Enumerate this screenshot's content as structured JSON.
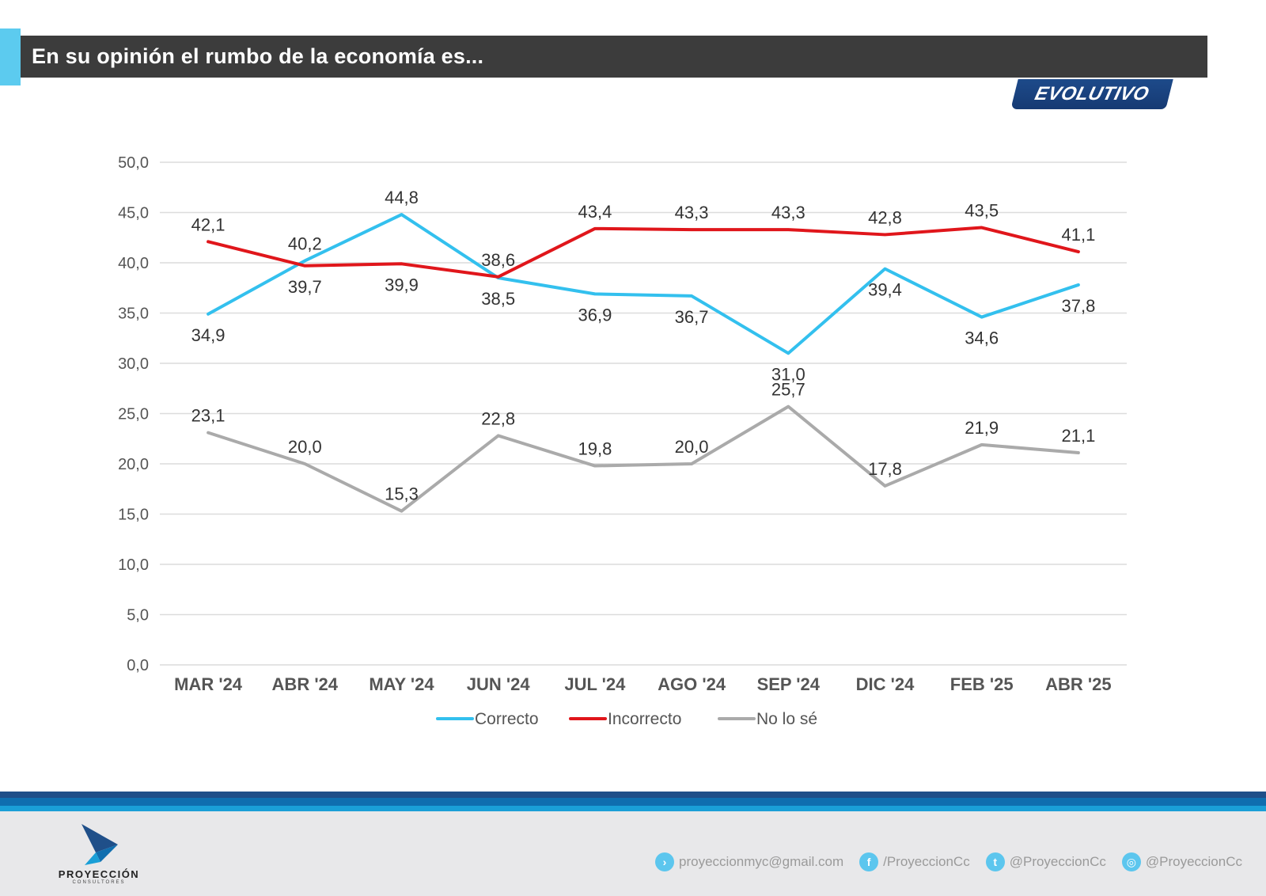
{
  "header": {
    "title": "En su opinión el rumbo de la economía es...",
    "badge": "EVOLUTIVO"
  },
  "colors": {
    "correcto": "#33c0ee",
    "incorrecto": "#e0161b",
    "nolose": "#aaaaaa",
    "grid": "#dcdcdc",
    "title_bar": "#3c3c3c",
    "accent": "#5ccbef",
    "badge": "#1d4a8a"
  },
  "chart_data": {
    "type": "line",
    "title": "En su opinión el rumbo de la economía es...",
    "xlabel": "",
    "ylabel": "",
    "ylim": [
      0,
      50
    ],
    "yticks": [
      0,
      5,
      10,
      15,
      20,
      25,
      30,
      35,
      40,
      45,
      50
    ],
    "ytick_labels": [
      "0,0",
      "5,0",
      "10,0",
      "15,0",
      "20,0",
      "25,0",
      "30,0",
      "35,0",
      "40,0",
      "45,0",
      "50,0"
    ],
    "grid": true,
    "legend_position": "bottom",
    "categories": [
      "MAR '24",
      "ABR '24",
      "MAY '24",
      "JUN '24",
      "JUL '24",
      "AGO '24",
      "SEP '24",
      "DIC '24",
      "FEB '25",
      "ABR '25"
    ],
    "series": [
      {
        "name": "Correcto",
        "color": "#33c0ee",
        "values": [
          34.9,
          40.2,
          44.8,
          38.5,
          36.9,
          36.7,
          31.0,
          39.4,
          34.6,
          37.8
        ],
        "labels": [
          "34,9",
          "40,2",
          "44,8",
          "38,5",
          "36,9",
          "36,7",
          "31,0",
          "39,4",
          "34,6",
          "37,8"
        ],
        "label_side": [
          "below",
          "above",
          "above",
          "below",
          "below",
          "below",
          "below",
          "below",
          "below",
          "below"
        ]
      },
      {
        "name": "Incorrecto",
        "color": "#e0161b",
        "values": [
          42.1,
          39.7,
          39.9,
          38.6,
          43.4,
          43.3,
          43.3,
          42.8,
          43.5,
          41.1
        ],
        "labels": [
          "42,1",
          "39,7",
          "39,9",
          "38,6",
          "43,4",
          "43,3",
          "43,3",
          "42,8",
          "43,5",
          "41,1"
        ],
        "label_side": [
          "above",
          "below",
          "below",
          "above",
          "above",
          "above",
          "above",
          "above",
          "above",
          "above"
        ]
      },
      {
        "name": "No lo sé",
        "color": "#aaaaaa",
        "values": [
          23.1,
          20.0,
          15.3,
          22.8,
          19.8,
          20.0,
          25.7,
          17.8,
          21.9,
          21.1
        ],
        "labels": [
          "23,1",
          "20,0",
          "15,3",
          "22,8",
          "19,8",
          "20,0",
          "25,7",
          "17,8",
          "21,9",
          "21,1"
        ],
        "label_side": [
          "above",
          "above",
          "above",
          "above",
          "above",
          "above",
          "above",
          "above",
          "above",
          "above"
        ]
      }
    ]
  },
  "footer": {
    "logo_name": "PROYECCIÓN",
    "logo_sub": "CONSULTORES",
    "contacts": [
      {
        "icon": "chevron-right-icon",
        "glyph": "›",
        "text": "proyeccionmyc@gmail.com"
      },
      {
        "icon": "facebook-icon",
        "glyph": "f",
        "text": "/ProyeccionCc"
      },
      {
        "icon": "twitter-icon",
        "glyph": "t",
        "text": "@ProyeccionCc"
      },
      {
        "icon": "instagram-icon",
        "glyph": "◎",
        "text": "@ProyeccionCc"
      }
    ]
  }
}
